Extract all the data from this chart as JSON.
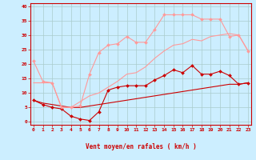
{
  "xlabel": "Vent moyen/en rafales ( km/h )",
  "background_color": "#cceeff",
  "grid_color": "#aacccc",
  "xlim": [
    -0.3,
    23.3
  ],
  "ylim": [
    -1,
    41
  ],
  "yticks": [
    0,
    5,
    10,
    15,
    20,
    25,
    30,
    35,
    40
  ],
  "xticks": [
    0,
    1,
    2,
    3,
    4,
    5,
    6,
    7,
    8,
    9,
    10,
    11,
    12,
    13,
    14,
    15,
    16,
    17,
    18,
    19,
    20,
    21,
    22,
    23
  ],
  "lines": [
    {
      "x": [
        0,
        1,
        2,
        3,
        4,
        5,
        6,
        7,
        8,
        9,
        10,
        11,
        12,
        13,
        14,
        15,
        16,
        17,
        18,
        19,
        20,
        21,
        22,
        23
      ],
      "y": [
        7.5,
        6.5,
        6.0,
        5.5,
        5.0,
        5.0,
        5.5,
        6.0,
        6.5,
        7.0,
        7.5,
        8.0,
        8.5,
        9.0,
        9.5,
        10.0,
        10.5,
        11.0,
        11.5,
        12.0,
        12.5,
        13.0,
        13.0,
        13.5
      ],
      "color": "#cc0000",
      "linewidth": 0.8,
      "marker": null,
      "alpha": 1.0,
      "zorder": 2
    },
    {
      "x": [
        0,
        1,
        2,
        3,
        4,
        5,
        6,
        7,
        8,
        9,
        10,
        11,
        12,
        13,
        14,
        15,
        16,
        17,
        18,
        19,
        20,
        21,
        22,
        23
      ],
      "y": [
        7.5,
        6.0,
        5.0,
        4.5,
        2.0,
        1.0,
        0.5,
        3.5,
        11.0,
        12.0,
        12.5,
        12.5,
        12.5,
        14.5,
        16.0,
        18.0,
        17.0,
        19.5,
        16.5,
        16.5,
        17.5,
        16.0,
        13.0,
        13.5
      ],
      "color": "#cc0000",
      "linewidth": 0.8,
      "marker": "D",
      "markersize": 2.0,
      "alpha": 1.0,
      "zorder": 3
    },
    {
      "x": [
        0,
        1,
        2,
        3,
        4,
        5,
        6,
        7,
        8,
        9,
        10,
        11,
        12,
        13,
        14,
        15,
        16,
        17,
        18,
        19,
        20,
        21,
        22,
        23
      ],
      "y": [
        13.5,
        13.5,
        13.5,
        5.0,
        5.0,
        7.0,
        9.0,
        10.0,
        12.0,
        14.0,
        16.5,
        17.0,
        19.0,
        22.0,
        24.5,
        26.5,
        27.0,
        28.5,
        28.0,
        29.5,
        30.0,
        30.5,
        30.0,
        24.5
      ],
      "color": "#ff9999",
      "linewidth": 0.8,
      "marker": null,
      "alpha": 1.0,
      "zorder": 2
    },
    {
      "x": [
        0,
        1,
        2,
        3,
        4,
        5,
        6,
        7,
        8,
        9,
        10,
        11,
        12,
        13,
        14,
        15,
        16,
        17,
        18,
        19,
        20,
        21,
        22,
        23
      ],
      "y": [
        21.0,
        14.0,
        13.5,
        5.0,
        5.0,
        5.5,
        16.5,
        24.0,
        26.5,
        27.0,
        29.5,
        27.5,
        27.5,
        32.0,
        37.0,
        37.0,
        37.0,
        37.0,
        35.5,
        35.5,
        35.5,
        29.5,
        30.0,
        24.5
      ],
      "color": "#ff9999",
      "linewidth": 0.8,
      "marker": "D",
      "markersize": 2.0,
      "alpha": 1.0,
      "zorder": 3
    }
  ]
}
